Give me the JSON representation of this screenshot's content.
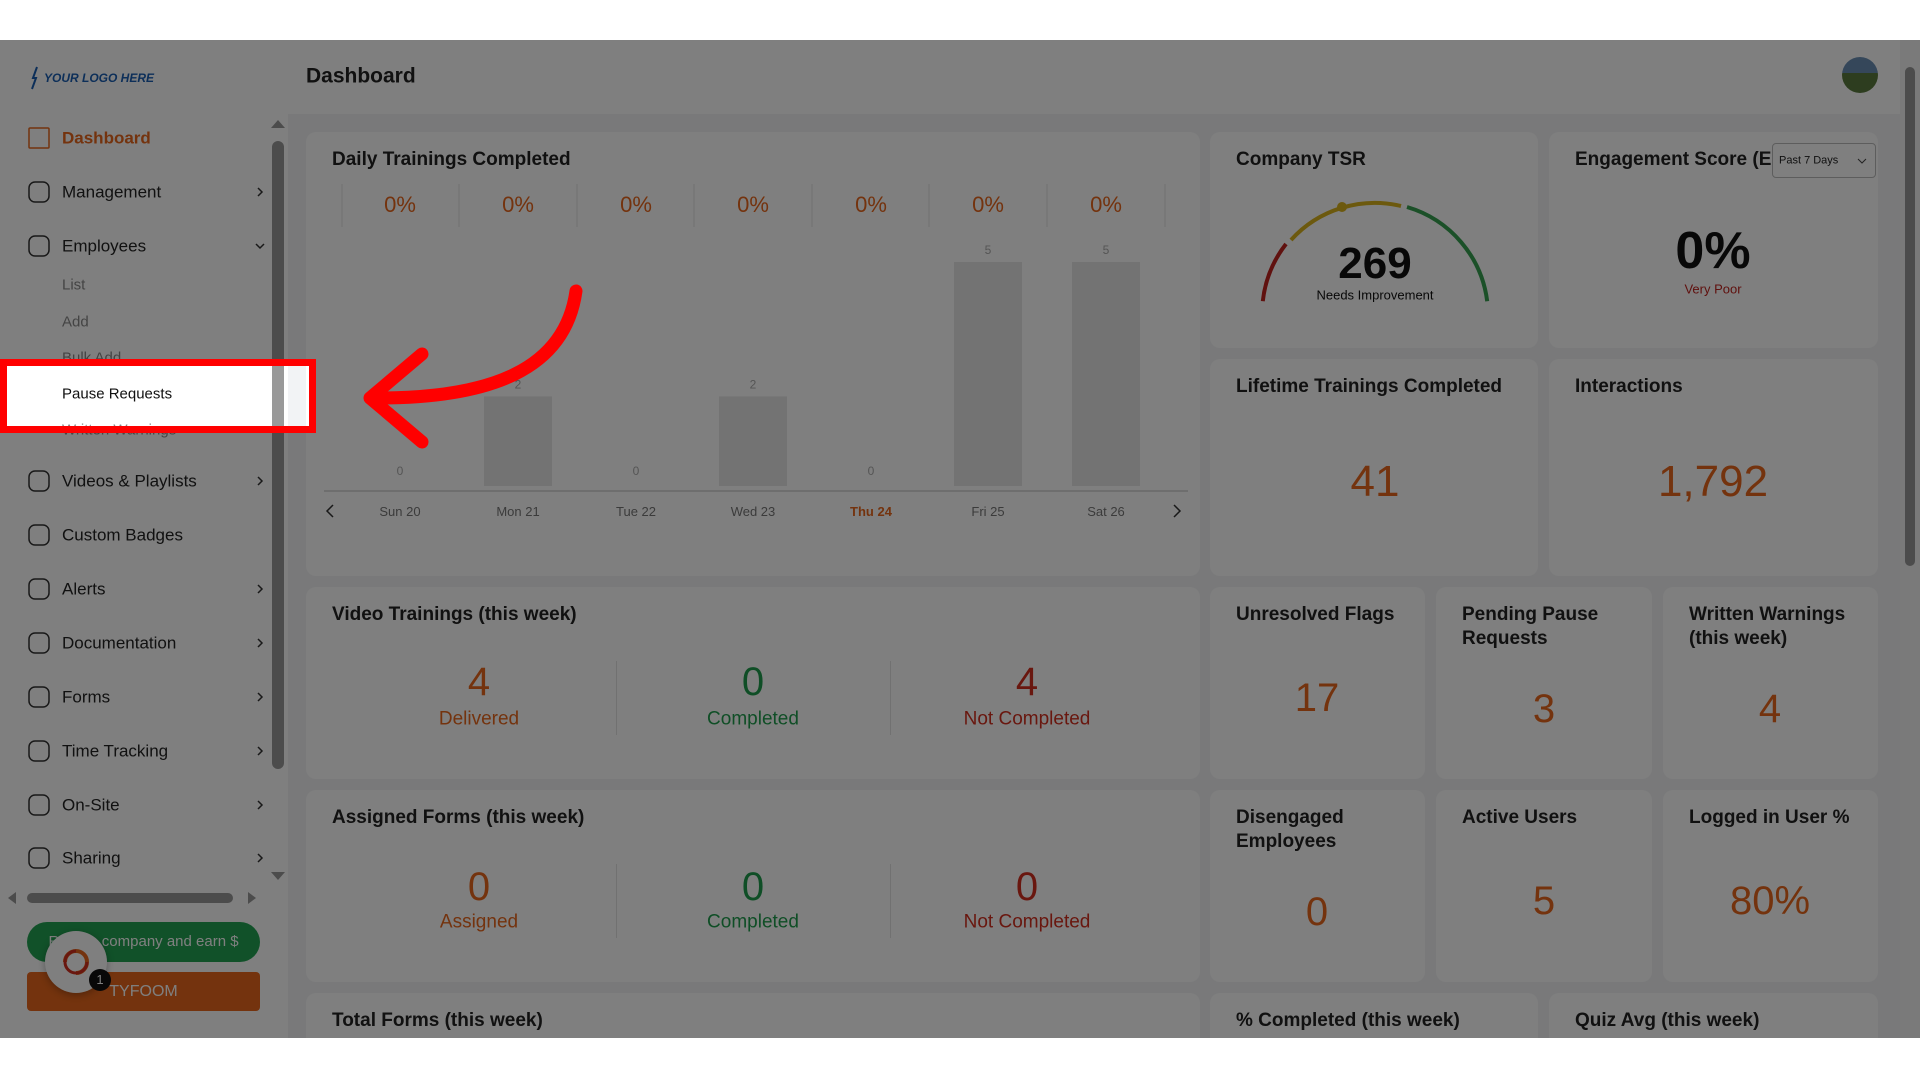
{
  "logo": "YOUR LOGO HERE",
  "header": {
    "title": "Dashboard"
  },
  "sidebar": {
    "items": [
      "Dashboard",
      "Management",
      "Employees",
      "Videos & Playlists",
      "Custom Badges",
      "Alerts",
      "Documentation",
      "Forms",
      "Time Tracking",
      "On-Site",
      "Sharing"
    ],
    "sub_items": [
      "List",
      "Add",
      "Bulk Add",
      "Pause Requests",
      "Written Warnings"
    ],
    "refer_button": "Refer a company and earn $",
    "brand_button": "TYFOOM",
    "chat_badge": 1
  },
  "daily_trainings": {
    "title": "Daily Trainings Completed",
    "percentages": [
      "0%",
      "0%",
      "0%",
      "0%",
      "0%",
      "0%",
      "0%"
    ],
    "days": [
      "Sun 20",
      "Mon 21",
      "Tue 22",
      "Wed 23",
      "Thu 24",
      "Fri 25",
      "Sat 26"
    ],
    "values": [
      0,
      2,
      0,
      2,
      0,
      5,
      5
    ],
    "current_day": 4
  },
  "company_tsr": {
    "title": "Company TSR",
    "value": 269,
    "rating": "Needs Improvement"
  },
  "engagement": {
    "title": "Engagement Score (E",
    "period": "Past 7 Days",
    "value": "0%",
    "rating": "Very Poor"
  },
  "lifetime": {
    "title": "Lifetime Trainings Completed",
    "value": 41
  },
  "interactions": {
    "title": "Interactions",
    "value": "1,792"
  },
  "video_trainings": {
    "title": "Video Trainings (this week)",
    "stats": [
      {
        "value": 4,
        "label": "Delivered"
      },
      {
        "value": 0,
        "label": "Completed"
      },
      {
        "value": 4,
        "label": "Not Completed"
      }
    ]
  },
  "unresolved_flags": {
    "title": "Unresolved Flags",
    "value": 17
  },
  "pending_pause": {
    "title": "Pending Pause Requests",
    "value": 3
  },
  "written_warnings": {
    "title": "Written Warnings (this week)",
    "value": 4
  },
  "assigned_forms": {
    "title": "Assigned Forms (this week)",
    "stats": [
      {
        "value": 0,
        "label": "Assigned"
      },
      {
        "value": 0,
        "label": "Completed"
      },
      {
        "value": 0,
        "label": "Not Completed"
      }
    ]
  },
  "disengaged": {
    "title": "Disengaged Employees",
    "value": 0
  },
  "active_users": {
    "title": "Active Users",
    "value": 5
  },
  "logged_in": {
    "title": "Logged in User %",
    "value": "80%"
  },
  "total_forms": {
    "title": "Total Forms (this week)"
  },
  "percent_completed": {
    "title": "% Completed (this week)"
  },
  "quiz_avg": {
    "title": "Quiz Avg (this week)"
  }
}
